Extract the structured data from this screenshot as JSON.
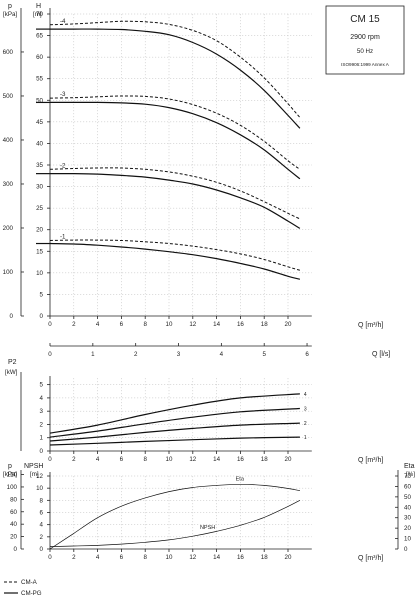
{
  "chart_data": [
    {
      "type": "line",
      "id": "head",
      "pressure_unit": "kPa",
      "head_unit": "m",
      "flow_unit": "m³/h",
      "flow_ls_unit": "l/s",
      "p_ticks": [
        0,
        100,
        200,
        300,
        400,
        500,
        600
      ],
      "h_ticks": [
        0,
        5,
        10,
        15,
        20,
        25,
        30,
        35,
        40,
        45,
        50,
        55,
        60,
        65,
        70
      ],
      "q_ticks": [
        0,
        2,
        4,
        6,
        8,
        10,
        12,
        14,
        16,
        18,
        20
      ],
      "ls_ticks": [
        0,
        1,
        2,
        3,
        4,
        5,
        6
      ],
      "ylim": [
        0,
        70
      ],
      "xlim": [
        0,
        22
      ],
      "infobox": {
        "title": "CM 15",
        "speed": "2900 rpm",
        "freq": "50 Hz",
        "norm": "ISO9906:1999 Annex A"
      },
      "series": [
        {
          "name": "-1",
          "variant": "CM-A",
          "x": [
            0,
            2,
            4,
            6,
            8,
            10,
            12,
            14,
            16,
            18,
            20,
            21
          ],
          "values": [
            17.5,
            17.6,
            17.6,
            17.5,
            17.2,
            16.8,
            16.2,
            15.4,
            14.4,
            13.1,
            11.4,
            10.6
          ]
        },
        {
          "name": "-1",
          "variant": "CM-PG",
          "x": [
            0,
            2,
            4,
            6,
            8,
            10,
            12,
            14,
            16,
            18,
            20,
            21
          ],
          "values": [
            16.8,
            16.7,
            16.4,
            16.0,
            15.5,
            14.9,
            14.2,
            13.3,
            12.2,
            10.9,
            9.2,
            8.5
          ]
        },
        {
          "name": "-2",
          "variant": "CM-A",
          "x": [
            0,
            2,
            4,
            6,
            8,
            10,
            12,
            14,
            16,
            18,
            20,
            21
          ],
          "values": [
            34.0,
            34.2,
            34.3,
            34.3,
            34.0,
            33.4,
            32.4,
            31.0,
            29.0,
            26.5,
            23.8,
            22.5
          ]
        },
        {
          "name": "-2",
          "variant": "CM-PG",
          "x": [
            0,
            2,
            4,
            6,
            8,
            10,
            12,
            14,
            16,
            18,
            20,
            21
          ],
          "values": [
            33.0,
            33.0,
            32.9,
            32.6,
            32.2,
            31.5,
            30.6,
            29.2,
            27.4,
            25.2,
            22.0,
            20.3
          ]
        },
        {
          "name": "-3",
          "variant": "CM-A",
          "x": [
            0,
            2,
            4,
            6,
            8,
            10,
            12,
            14,
            16,
            18,
            20,
            21
          ],
          "values": [
            50.5,
            50.6,
            50.8,
            51.0,
            50.9,
            50.3,
            49.0,
            47.0,
            44.2,
            40.5,
            36.0,
            34.0
          ]
        },
        {
          "name": "-3",
          "variant": "CM-PG",
          "x": [
            0,
            2,
            4,
            6,
            8,
            10,
            12,
            14,
            16,
            18,
            20,
            21
          ],
          "values": [
            49.5,
            49.5,
            49.5,
            49.4,
            49.1,
            48.3,
            46.9,
            44.8,
            42.0,
            38.5,
            34.0,
            31.8
          ]
        },
        {
          "name": "-4",
          "variant": "CM-A",
          "x": [
            0,
            2,
            4,
            6,
            8,
            10,
            12,
            14,
            16,
            18,
            20,
            21
          ],
          "values": [
            67.5,
            67.7,
            68.0,
            68.3,
            68.2,
            67.6,
            66.2,
            63.8,
            60.0,
            55.2,
            49.2,
            46.0
          ]
        },
        {
          "name": "-4",
          "variant": "CM-PG",
          "x": [
            0,
            2,
            4,
            6,
            8,
            10,
            12,
            14,
            16,
            18,
            20,
            21
          ],
          "values": [
            66.5,
            66.5,
            66.5,
            66.4,
            66.0,
            65.2,
            63.4,
            60.7,
            57.0,
            52.3,
            46.5,
            43.5
          ]
        }
      ]
    },
    {
      "type": "line",
      "id": "power",
      "title": "P2",
      "unit": "kW",
      "y_ticks": [
        0,
        1,
        2,
        3,
        4,
        5
      ],
      "q_ticks": [
        0,
        2,
        4,
        6,
        8,
        10,
        12,
        14,
        16,
        18,
        20
      ],
      "flow_unit": "m³/h",
      "ylim": [
        0,
        5.5
      ],
      "xlim": [
        0,
        22
      ],
      "series": [
        {
          "name": "1",
          "x": [
            0,
            4,
            8,
            12,
            16,
            21
          ],
          "values": [
            0.45,
            0.58,
            0.72,
            0.85,
            0.97,
            1.05
          ]
        },
        {
          "name": "2",
          "x": [
            0,
            4,
            8,
            12,
            16,
            21
          ],
          "values": [
            0.75,
            1.05,
            1.4,
            1.7,
            1.95,
            2.1
          ]
        },
        {
          "name": "3",
          "x": [
            0,
            4,
            8,
            12,
            16,
            21
          ],
          "values": [
            1.05,
            1.5,
            2.05,
            2.55,
            2.95,
            3.2
          ]
        },
        {
          "name": "4",
          "x": [
            0,
            4,
            8,
            12,
            16,
            21
          ],
          "values": [
            1.35,
            1.95,
            2.75,
            3.45,
            4.0,
            4.3
          ]
        }
      ]
    },
    {
      "type": "line",
      "id": "npsh-eta",
      "p_unit": "kPa",
      "npsh_title": "NPSH",
      "npsh_unit": "m",
      "eta_title": "Eta",
      "eta_unit": "%",
      "p_ticks": [
        0,
        20,
        40,
        60,
        80,
        100,
        120
      ],
      "npsh_ticks": [
        0,
        2,
        4,
        6,
        8,
        10,
        12
      ],
      "eta_ticks": [
        0,
        10,
        20,
        30,
        40,
        50,
        60,
        70
      ],
      "q_ticks": [
        0,
        2,
        4,
        6,
        8,
        10,
        12,
        14,
        16,
        18,
        20
      ],
      "flow_unit": "m³/h",
      "xlim": [
        0,
        22
      ],
      "series": [
        {
          "name": "Eta",
          "axis": "eta",
          "x": [
            0,
            2,
            4,
            6,
            8,
            10,
            12,
            14,
            16,
            18,
            20,
            21
          ],
          "values": [
            0,
            15,
            30,
            41,
            49,
            55,
            59,
            61,
            62,
            61,
            58,
            56
          ]
        },
        {
          "name": "NPSH",
          "axis": "npsh",
          "x": [
            0,
            2,
            4,
            6,
            8,
            10,
            12,
            14,
            16,
            18,
            20,
            21
          ],
          "values": [
            0.4,
            0.5,
            0.6,
            0.8,
            1.1,
            1.5,
            2.1,
            2.9,
            3.9,
            5.2,
            7.0,
            8.0
          ]
        }
      ]
    }
  ],
  "legend": [
    {
      "label": "CM-A",
      "style": "dashed"
    },
    {
      "label": "CM-PG",
      "style": "solid"
    }
  ],
  "colors": {
    "ink": "#111111",
    "grid": "#bdbdbd"
  }
}
